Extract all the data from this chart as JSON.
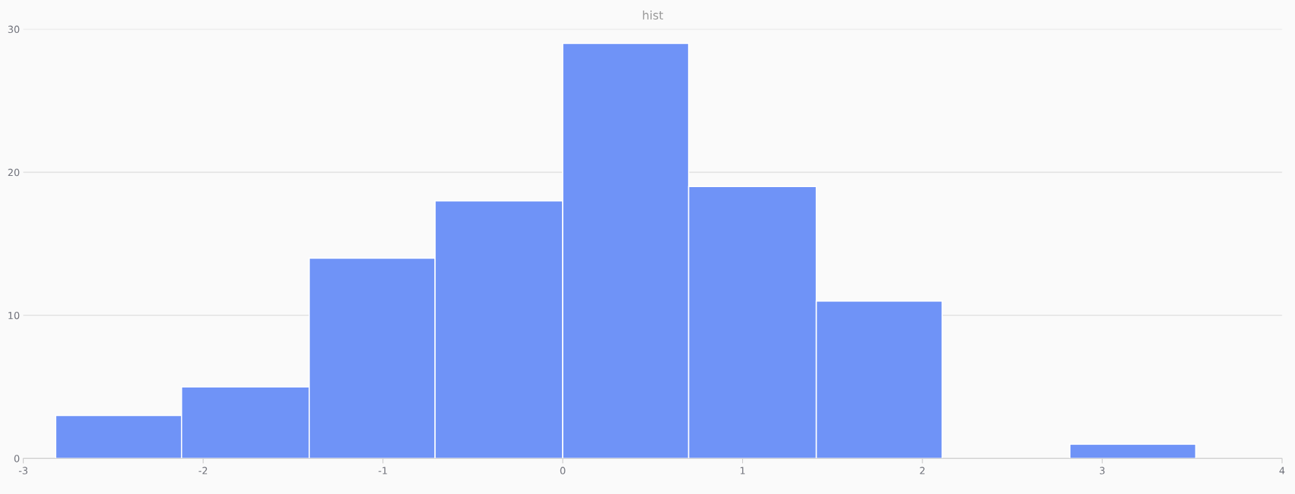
{
  "chart_data": {
    "type": "histogram",
    "title": "hist",
    "bins": [
      -2.82,
      -2.12,
      -1.41,
      -0.71,
      0.0,
      0.7,
      1.41,
      2.11,
      2.82,
      3.52
    ],
    "values": [
      3,
      5,
      14,
      18,
      29,
      19,
      11,
      0,
      1
    ],
    "color": "#6f93f7",
    "xlim": [
      -3,
      4
    ],
    "xticks": [
      -3,
      -2,
      -1,
      0,
      1,
      2,
      3,
      4
    ],
    "ylim": [
      0,
      30
    ],
    "yticks": [
      0,
      10,
      20,
      30
    ],
    "grid": "y",
    "legend": false
  }
}
